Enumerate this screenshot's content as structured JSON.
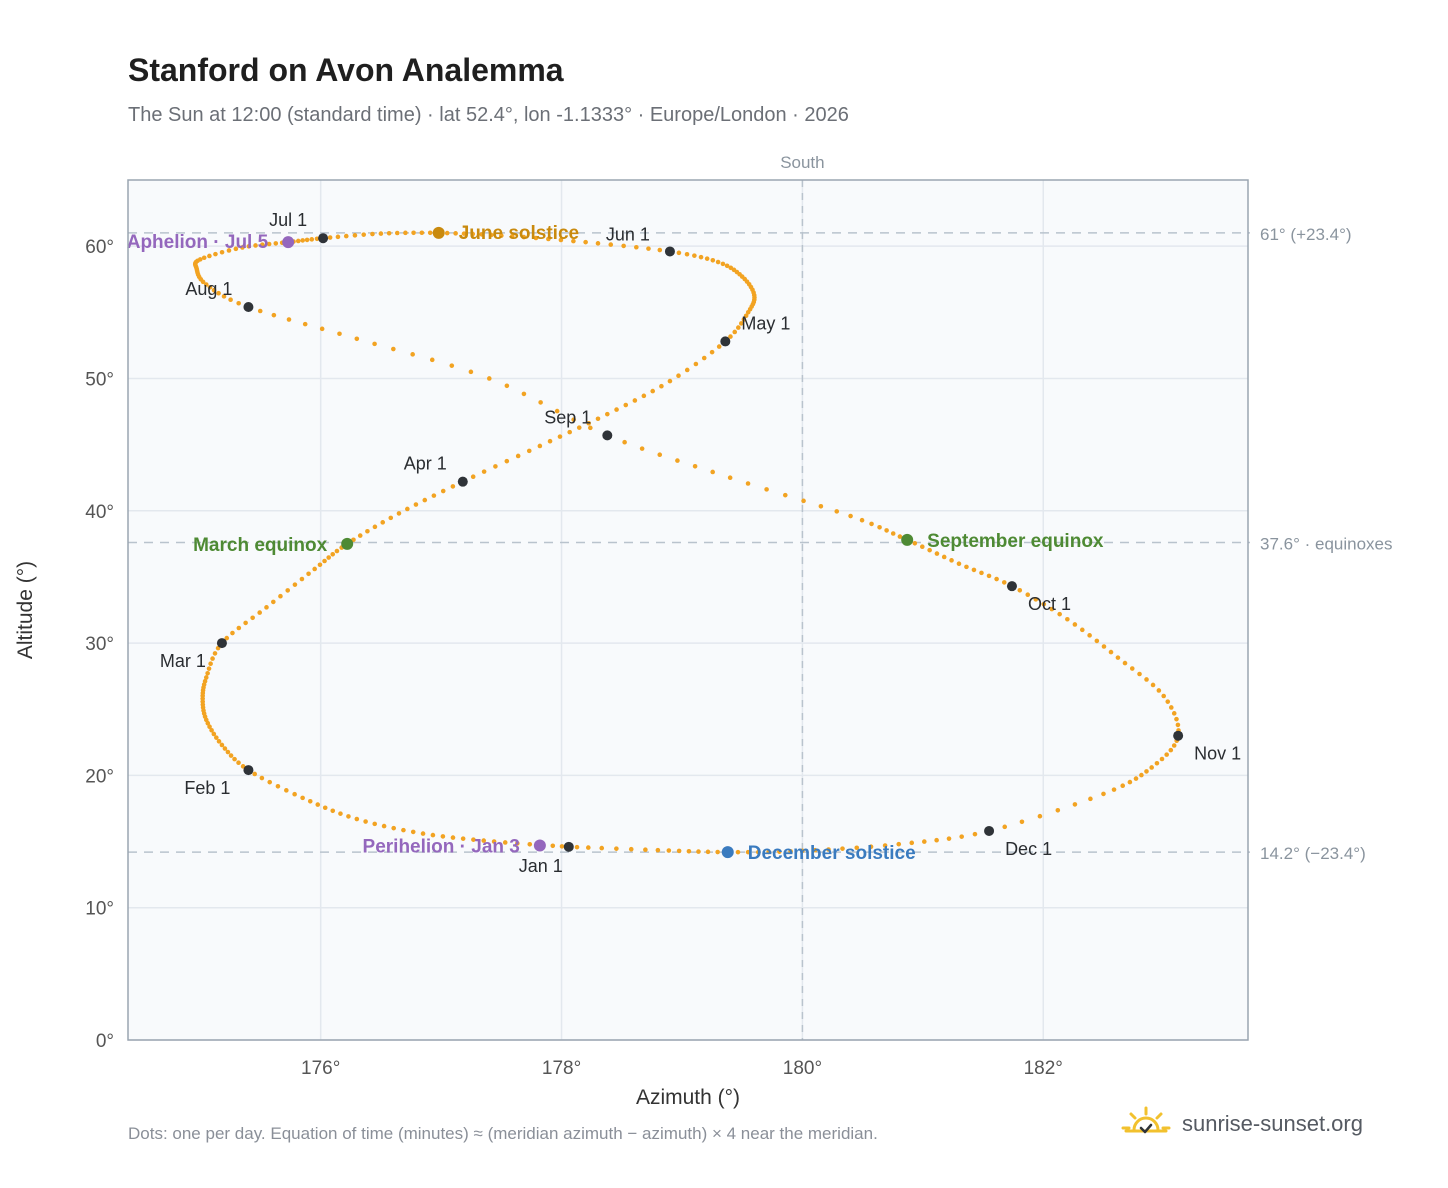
{
  "header": {
    "title": "Stanford on Avon Analemma",
    "subtitle": "The Sun at 12:00 (standard time) · lat 52.4°, lon -1.1333° · Europe/London · 2026"
  },
  "footer": {
    "note": "Dots: one per day. Equation of time (minutes) ≈ (meridian azimuth − azimuth) × 4 near the meridian.",
    "brand": "sunrise-sunset.org",
    "brand_icon": "sun-check-icon"
  },
  "colors": {
    "path": "#f2a322",
    "month_marker": "#2f3338",
    "solstice_june": "#c98a0e",
    "equinox": "#4e8a34",
    "solstice_december": "#3a7bbf",
    "apsis": "#9467bd",
    "plot_bg": "#f8fafc",
    "grid": "#e3e8ee",
    "reference_line": "#b9c3cd"
  },
  "chart_data": {
    "type": "scatter",
    "xlabel": "Azimuth (°)",
    "ylabel": "Altitude (°)",
    "xlim": [
      174.4,
      183.7
    ],
    "ylim": [
      0,
      65
    ],
    "x_ticks": [
      176,
      178,
      180,
      182
    ],
    "x_tick_labels": [
      "176°",
      "178°",
      "180°",
      "182°"
    ],
    "y_ticks": [
      0,
      10,
      20,
      30,
      40,
      50,
      60
    ],
    "y_tick_labels": [
      "0°",
      "10°",
      "20°",
      "30°",
      "40°",
      "50°",
      "60°"
    ],
    "grid": true,
    "meridian": {
      "azimuth": 180,
      "label": "South"
    },
    "reference_lines": [
      {
        "altitude": 61.0,
        "label": "61° (+23.4°)"
      },
      {
        "altitude": 37.6,
        "label": "37.6° · equinoxes"
      },
      {
        "altitude": 14.2,
        "label": "14.2° (−23.4°)"
      }
    ],
    "path_points": [
      [
        178.06,
        14.6
      ],
      [
        177.44,
        15.0
      ],
      [
        176.85,
        15.6
      ],
      [
        176.3,
        16.7
      ],
      [
        175.85,
        18.3
      ],
      [
        175.4,
        20.4
      ],
      [
        175.18,
        22.3
      ],
      [
        175.05,
        24.2
      ],
      [
        175.02,
        25.8
      ],
      [
        175.05,
        27.4
      ],
      [
        175.18,
        30.0
      ],
      [
        175.55,
        32.7
      ],
      [
        175.95,
        35.6
      ],
      [
        176.22,
        37.5
      ],
      [
        176.65,
        39.8
      ],
      [
        177.18,
        42.2
      ],
      [
        177.82,
        44.9
      ],
      [
        178.38,
        47.3
      ],
      [
        178.9,
        49.8
      ],
      [
        179.36,
        52.8
      ],
      [
        179.55,
        55.0
      ],
      [
        179.6,
        56.3
      ],
      [
        179.5,
        57.7
      ],
      [
        179.3,
        58.8
      ],
      [
        178.9,
        59.6
      ],
      [
        178.2,
        60.3
      ],
      [
        177.5,
        60.8
      ],
      [
        176.98,
        61.0
      ],
      [
        176.5,
        60.95
      ],
      [
        176.02,
        60.6
      ],
      [
        175.73,
        60.3
      ],
      [
        175.35,
        59.9
      ],
      [
        175.0,
        59.0
      ],
      [
        174.97,
        58.3
      ],
      [
        175.05,
        57.1
      ],
      [
        175.4,
        55.4
      ],
      [
        176.3,
        53.0
      ],
      [
        177.4,
        50.0
      ],
      [
        178.38,
        45.7
      ],
      [
        179.4,
        42.5
      ],
      [
        180.4,
        39.6
      ],
      [
        180.87,
        37.8
      ],
      [
        181.3,
        36.0
      ],
      [
        181.74,
        34.3
      ],
      [
        182.2,
        31.8
      ],
      [
        182.62,
        28.9
      ],
      [
        183.0,
        26.0
      ],
      [
        183.12,
        23.0
      ],
      [
        182.9,
        20.6
      ],
      [
        182.5,
        18.6
      ],
      [
        181.55,
        15.8
      ],
      [
        180.8,
        14.8
      ],
      [
        180.0,
        14.3
      ],
      [
        179.38,
        14.2
      ],
      [
        178.8,
        14.35
      ],
      [
        178.06,
        14.6
      ]
    ],
    "month_markers": [
      {
        "label": "Jan 1",
        "azimuth": 178.06,
        "altitude": 14.6
      },
      {
        "label": "Feb 1",
        "azimuth": 175.4,
        "altitude": 20.4
      },
      {
        "label": "Mar 1",
        "azimuth": 175.18,
        "altitude": 30.0
      },
      {
        "label": "Apr 1",
        "azimuth": 177.18,
        "altitude": 42.2
      },
      {
        "label": "May 1",
        "azimuth": 179.36,
        "altitude": 52.8
      },
      {
        "label": "Jun 1",
        "azimuth": 178.9,
        "altitude": 59.6
      },
      {
        "label": "Jul 1",
        "azimuth": 176.02,
        "altitude": 60.6
      },
      {
        "label": "Aug 1",
        "azimuth": 175.4,
        "altitude": 55.4
      },
      {
        "label": "Sep 1",
        "azimuth": 178.38,
        "altitude": 45.7
      },
      {
        "label": "Oct 1",
        "azimuth": 181.74,
        "altitude": 34.3
      },
      {
        "label": "Nov 1",
        "azimuth": 183.12,
        "altitude": 23.0
      },
      {
        "label": "Dec 1",
        "azimuth": 181.55,
        "altitude": 15.8
      }
    ],
    "events": [
      {
        "label": "June solstice",
        "kind": "solstice_june",
        "azimuth": 176.98,
        "altitude": 61.0
      },
      {
        "label": "Aphelion · Jul 5",
        "kind": "apsis",
        "azimuth": 175.73,
        "altitude": 60.3
      },
      {
        "label": "March equinox",
        "kind": "equinox",
        "azimuth": 176.22,
        "altitude": 37.5
      },
      {
        "label": "September equinox",
        "kind": "equinox",
        "azimuth": 180.87,
        "altitude": 37.8
      },
      {
        "label": "Perihelion · Jan 3",
        "kind": "apsis",
        "azimuth": 177.82,
        "altitude": 14.7
      },
      {
        "label": "December solstice",
        "kind": "solstice_december",
        "azimuth": 179.38,
        "altitude": 14.2
      }
    ]
  }
}
